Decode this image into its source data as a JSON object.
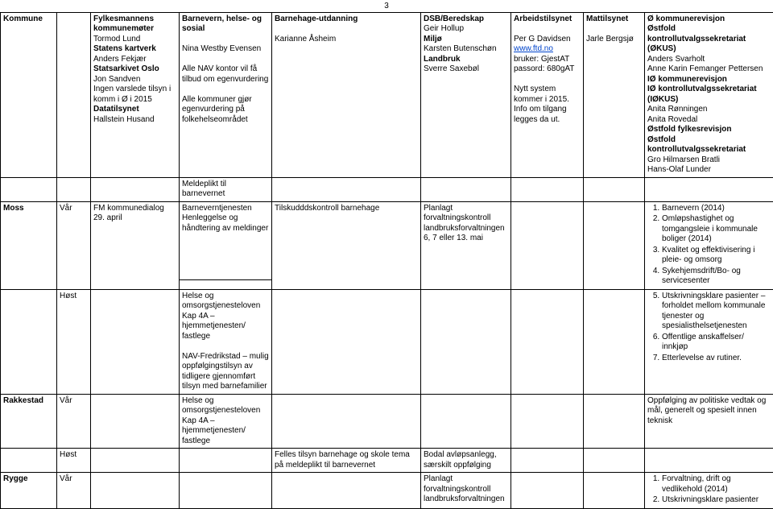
{
  "page_number": "3",
  "header_row": {
    "c0": "Kommune",
    "c2_lines": [
      {
        "t": "Fylkesmannens kommunemøter",
        "b": true
      },
      {
        "t": "Tormod Lund"
      },
      {
        "t": "Statens kartverk",
        "b": true
      },
      {
        "t": "Anders Fekjær"
      },
      {
        "t": "Statsarkivet Oslo",
        "b": true
      },
      {
        "t": "Jon Sandven"
      },
      {
        "t": "Ingen varslede tilsyn i komm i Ø i 2015"
      },
      {
        "t": "Datatilsynet",
        "b": true
      },
      {
        "t": "Hallstein Husand"
      }
    ],
    "c3_lines": [
      {
        "t": "Barnevern, helse- og sosial",
        "b": true
      },
      {
        "t": ""
      },
      {
        "t": "Nina Westby Evensen"
      },
      {
        "t": ""
      },
      {
        "t": "Alle NAV kontor vil få tilbud om egenvurdering"
      },
      {
        "t": ""
      },
      {
        "t": "Alle kommuner gjør egenvurdering på folkehelseområdet"
      }
    ],
    "c4_lines": [
      {
        "t": "Barnehage-utdanning",
        "b": true
      },
      {
        "t": ""
      },
      {
        "t": "Karianne Åsheim"
      }
    ],
    "c5_lines": [
      {
        "t": "DSB/Beredskap",
        "b": true
      },
      {
        "t": "Geir Hollup"
      },
      {
        "t": "Miljø",
        "b": true
      },
      {
        "t": "Karsten Butenschøn"
      },
      {
        "t": "Landbruk",
        "b": true
      },
      {
        "t": "Sverre Saxebøl"
      }
    ],
    "c6_lines": [
      {
        "t": "Arbeidstilsynet",
        "b": true
      },
      {
        "t": ""
      },
      {
        "t": "Per G Davidsen"
      },
      {
        "t": "www.ftd.no",
        "link": true
      },
      {
        "t": "bruker: GjestAT"
      },
      {
        "t": "passord: 680gAT"
      },
      {
        "t": ""
      },
      {
        "t": "Nytt system kommer i 2015."
      },
      {
        "t": "Info om tilgang legges da ut."
      }
    ],
    "c7_lines": [
      {
        "t": "Mattilsynet",
        "b": true
      },
      {
        "t": ""
      },
      {
        "t": "Jarle Bergsjø"
      }
    ],
    "c8_lines": [
      {
        "t": "Ø kommunerevisjon",
        "b": true
      },
      {
        "t": "Østfold kontrollutvalgssekretariat (ØKUS)",
        "b": true
      },
      {
        "t": "Anders Svarholt"
      },
      {
        "t": "Anne Karin Femanger Pettersen"
      },
      {
        "t": "IØ kommunerevisjon",
        "b": true
      },
      {
        "t": "IØ kontrollutvalgssekretariat (IØKUS)",
        "b": true
      },
      {
        "t": "Anita Rønningen"
      },
      {
        "t": "Anita Rovedal"
      },
      {
        "t": "Østfold fylkesrevisjon",
        "b": true
      },
      {
        "t": "Østfold kontrollutvalgssekretariat",
        "b": true
      },
      {
        "t": "Gro Hilmarsen Bratli"
      },
      {
        "t": "Hans-Olaf Lunder"
      }
    ]
  },
  "meldeplikt_row": {
    "c3": "Meldeplikt til barnevernet"
  },
  "barneverntj_row": {
    "c3": "Barneverntjenesten Henleggelse og håndtering av meldinger"
  },
  "moss_vaar": {
    "c0": "Moss",
    "c1": "Vår",
    "c2": "FM kommunedialog 29. april",
    "c4": "Tilskudddskontroll barnehage",
    "c5": "Planlagt forvaltningskontroll landbruksforvaltningen 6, 7 eller 13. mai",
    "list": [
      "Barnevern (2014)",
      "Omløpshastighet og tomgangsleie i kommunale boliger (2014)",
      "Kvalitet og effektivisering i pleie- og omsorg",
      "Sykehjemsdrift/Bo- og servicesenter"
    ]
  },
  "moss_host": {
    "c1": "Høst",
    "c3_a": "Helse og omsorgstjenesteloven Kap 4A – hjemmetjenesten/ fastlege",
    "c3_b": "NAV-Fredrikstad – mulig oppfølgingstilsyn av tidligere gjennomført tilsyn med barnefamilier",
    "list": [
      "Utskrivningsklare pasienter – forholdet mellom kommunale tjenester og spesialisthelsetjenesten",
      "Offentlige anskaffelser/ innkjøp",
      "Etterlevelse av rutiner."
    ]
  },
  "rakkestad_vaar": {
    "c0": "Rakkestad",
    "c1": "Vår",
    "c3": "Helse og omsorgstjenesteloven Kap 4A – hjemmetjenesten/ fastlege",
    "c8": "Oppfølging av politiske vedtak og mål, generelt og spesielt innen teknisk"
  },
  "rakkestad_host": {
    "c1": "Høst",
    "c4": "Felles tilsyn barnehage og skole tema på meldeplikt til barnevernet",
    "c5": "Bodal avløpsanlegg, særskilt oppfølging"
  },
  "rygge_vaar": {
    "c0": "Rygge",
    "c1": "Vår",
    "c5": "Planlagt forvaltningskontroll landbruksforvaltningen",
    "list": [
      "Forvaltning, drift og vedlikehold (2014)",
      "Utskrivningsklare pasienter"
    ]
  }
}
